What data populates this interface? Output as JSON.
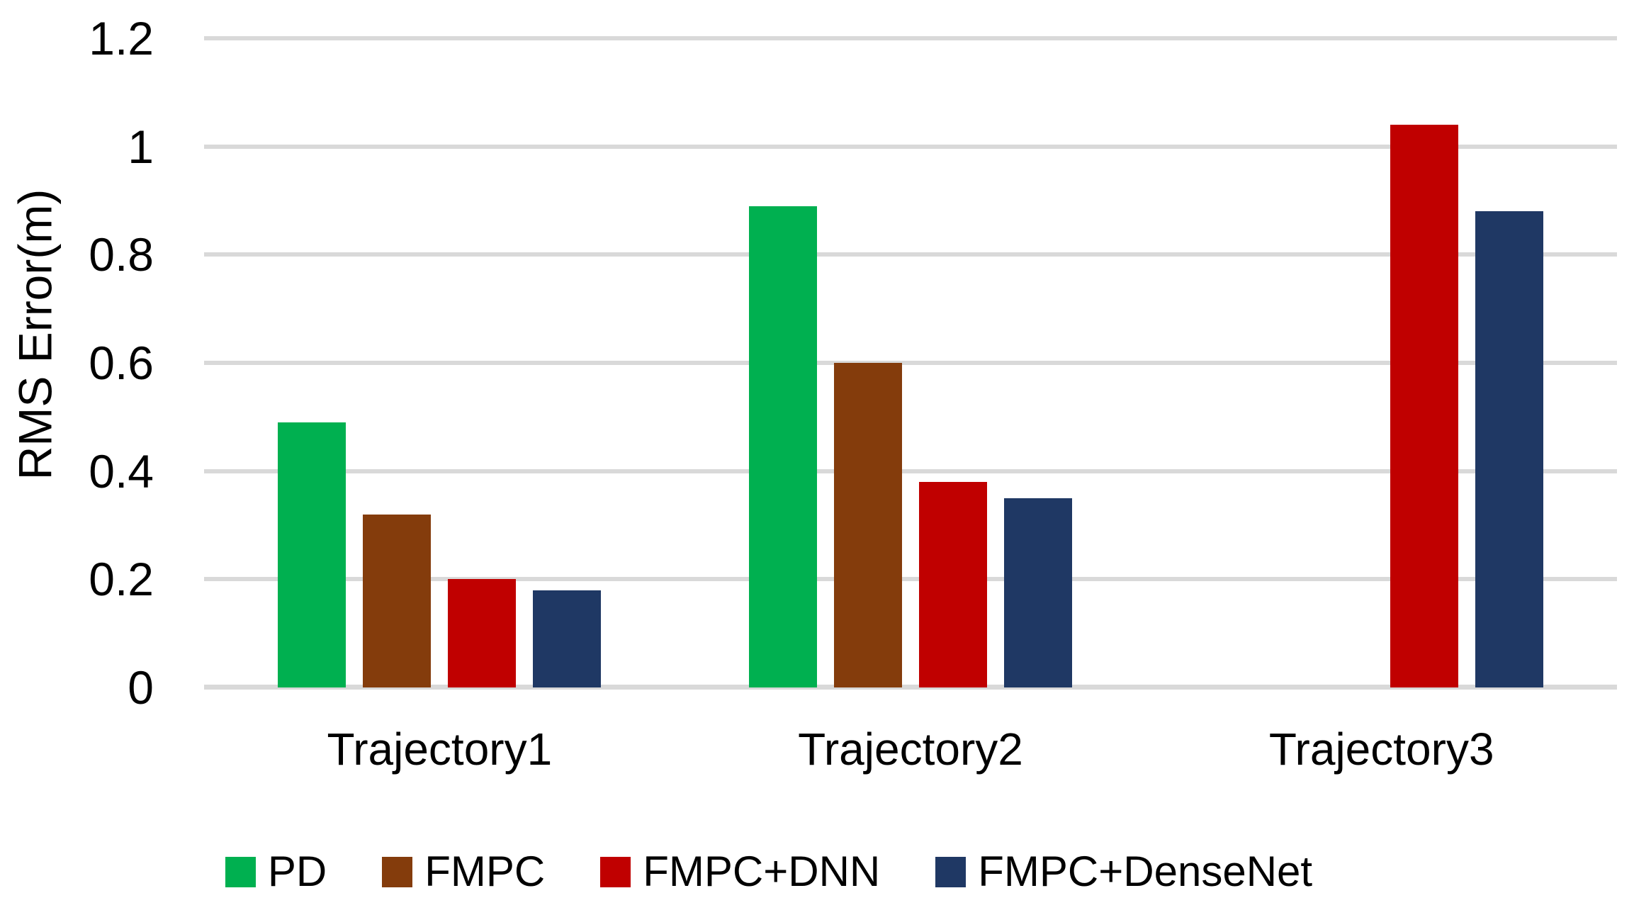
{
  "chart_data": {
    "type": "bar",
    "title": "",
    "xlabel": "",
    "ylabel": "RMS Error(m)",
    "ylim": [
      0,
      1.2
    ],
    "grid": true,
    "legend_position": "bottom",
    "background_color": "#FFFFFF",
    "gridline_color": "#D9D9D9",
    "text_color": "#000000",
    "yticks": [
      {
        "label": "0",
        "value": 0
      },
      {
        "label": "0.2",
        "value": 0.2
      },
      {
        "label": "0.4",
        "value": 0.4
      },
      {
        "label": "0.6",
        "value": 0.6
      },
      {
        "label": "0.8",
        "value": 0.8
      },
      {
        "label": "1",
        "value": 1
      },
      {
        "label": "1.2",
        "value": 1.2
      }
    ],
    "categories": [
      "Trajectory1",
      "Trajectory2",
      "Trajectory3"
    ],
    "series": [
      {
        "name": "PD",
        "color": "#00B050",
        "values": [
          0.49,
          0.89,
          null
        ]
      },
      {
        "name": "FMPC",
        "color": "#843C0C",
        "values": [
          0.32,
          0.6,
          null
        ]
      },
      {
        "name": "FMPC+DNN",
        "color": "#C00000",
        "values": [
          0.2,
          0.38,
          1.04
        ]
      },
      {
        "name": "FMPC+DenseNet",
        "color": "#1F3864",
        "values": [
          0.18,
          0.35,
          0.88
        ]
      }
    ]
  }
}
